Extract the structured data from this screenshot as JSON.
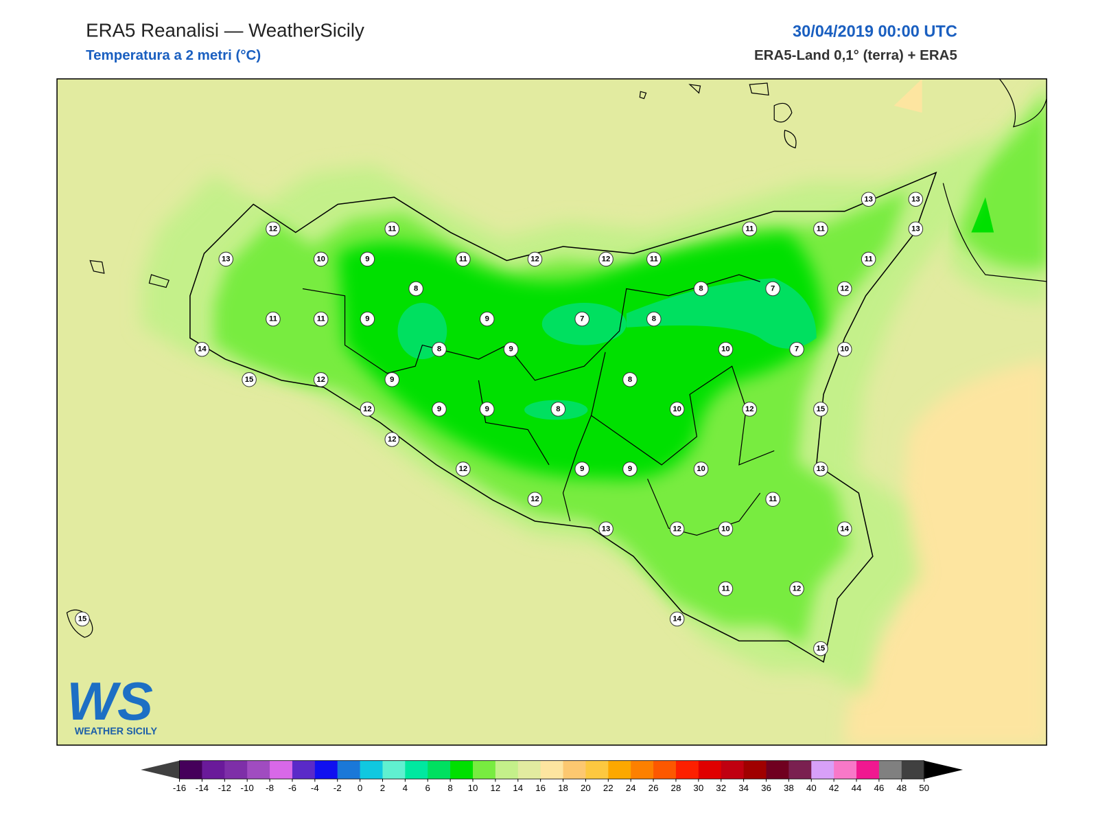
{
  "header": {
    "title": "ERA5 Reanalisi — WeatherSicily",
    "subtitle": "Temperatura a 2 metri (°C)",
    "date": "30/04/2019 00:00 UTC",
    "source": "ERA5-Land 0,1° (terra) + ERA5"
  },
  "stations": [
    12,
    11,
    13,
    10,
    9,
    11,
    12,
    12,
    11,
    8,
    11,
    11,
    9,
    9,
    7,
    8,
    8,
    7,
    12,
    11,
    11,
    13,
    13,
    13,
    11,
    14,
    8,
    9,
    8,
    10,
    7,
    10,
    15,
    12,
    9,
    12,
    9,
    9,
    8,
    10,
    12,
    15,
    12,
    12,
    9,
    9,
    10,
    13,
    12,
    11,
    13,
    12,
    10,
    14,
    11,
    12,
    14,
    15,
    15
  ],
  "colorbar": {
    "ticks": [
      -16,
      -14,
      -12,
      -10,
      -8,
      -6,
      -4,
      -2,
      0,
      2,
      4,
      6,
      8,
      10,
      12,
      14,
      16,
      18,
      20,
      22,
      24,
      26,
      28,
      30,
      32,
      34,
      36,
      38,
      40,
      42,
      44,
      46,
      48,
      50
    ],
    "colors": [
      "#45005a",
      "#6a1a9a",
      "#7e2fa8",
      "#a04cc0",
      "#d868e8",
      "#5a2ac8",
      "#1010f0",
      "#1a78d8",
      "#10c8e0",
      "#60f0d0",
      "#00e8a0",
      "#00e060",
      "#00e000",
      "#78ec40",
      "#c4f08a",
      "#e2eba0",
      "#fde5a0",
      "#fcc870",
      "#fcc840",
      "#fca800",
      "#fc8000",
      "#fc5800",
      "#fc2000",
      "#e00000",
      "#c00010",
      "#a00000",
      "#700020",
      "#7a2050",
      "#d8a0f8",
      "#f878c8",
      "#f01890",
      "#808080",
      "#404040"
    ],
    "under": "#404040",
    "over": "#000000"
  },
  "logo": {
    "mark": "WS",
    "name": "WEATHER SICILY"
  }
}
